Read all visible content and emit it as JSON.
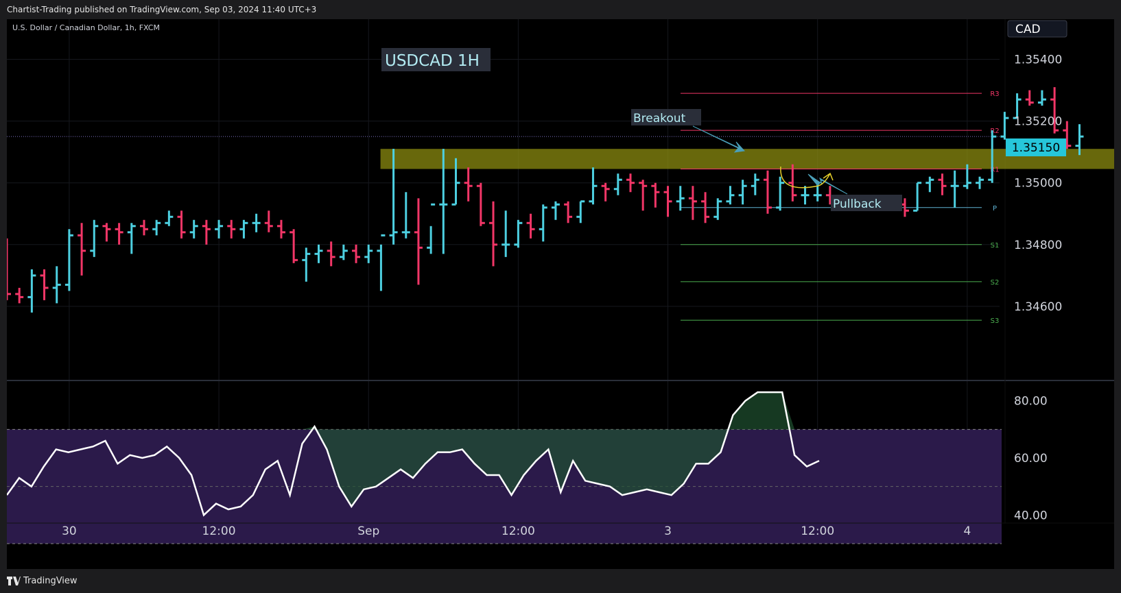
{
  "header": {
    "publisher_text": "Chartist-Trading published on TradingView.com, Sep 03, 2024 11:40 UTC+3"
  },
  "footer": {
    "brand": "TradingView"
  },
  "symbol_info": "U.S. Dollar / Canadian Dollar, 1h, FXCM",
  "currency_label": "CAD",
  "chart_title": "USDCAD 1H",
  "colors": {
    "up": "#4dd0e1",
    "down": "#f23667",
    "up_big": "#7ed7a0",
    "down_big": "#ef5350",
    "zone": "#8b8b10",
    "rsi_band": "#2b1a4a",
    "resistance": "#f23667",
    "support": "#4caf50",
    "pivot": "#5fb3d3"
  },
  "chart_data": {
    "type": "ohlc",
    "price_axis": {
      "ylim": [
        1.3436,
        1.3553
      ],
      "ticks": [
        "1.35400",
        "1.35200",
        "1.35000",
        "1.34800",
        "1.34600"
      ],
      "tick_values": [
        1.354,
        1.352,
        1.35,
        1.348,
        1.346
      ]
    },
    "time_axis": {
      "labels": [
        "30",
        "12:00",
        "Sep",
        "12:00",
        "3",
        "12:00",
        "4"
      ],
      "label_index": [
        5,
        17,
        29,
        41,
        53,
        65,
        77
      ]
    },
    "last_price": "1.35150",
    "last_price_value": 1.3515,
    "bars": [
      [
        1.3482,
        1.3482,
        1.3462,
        1.3464
      ],
      [
        1.3464,
        1.3466,
        1.3461,
        1.3463
      ],
      [
        1.3463,
        1.3472,
        1.3458,
        1.347
      ],
      [
        1.347,
        1.3472,
        1.3462,
        1.3466
      ],
      [
        1.3466,
        1.3473,
        1.3461,
        1.3467
      ],
      [
        1.3467,
        1.3485,
        1.3465,
        1.3483
      ],
      [
        1.3483,
        1.3487,
        1.347,
        1.3478
      ],
      [
        1.3478,
        1.3488,
        1.3476,
        1.3486
      ],
      [
        1.3486,
        1.3487,
        1.3481,
        1.3485
      ],
      [
        1.3485,
        1.3487,
        1.348,
        1.3484
      ],
      [
        1.3484,
        1.3487,
        1.3477,
        1.3486
      ],
      [
        1.3486,
        1.3488,
        1.3483,
        1.3485
      ],
      [
        1.3485,
        1.3488,
        1.3483,
        1.3487
      ],
      [
        1.3487,
        1.3491,
        1.3486,
        1.3489
      ],
      [
        1.3489,
        1.3491,
        1.3482,
        1.3484
      ],
      [
        1.3484,
        1.3488,
        1.3482,
        1.3486
      ],
      [
        1.3486,
        1.3488,
        1.348,
        1.3485
      ],
      [
        1.3485,
        1.3488,
        1.3482,
        1.3486
      ],
      [
        1.3486,
        1.3488,
        1.3482,
        1.3485
      ],
      [
        1.3485,
        1.3488,
        1.3482,
        1.3487
      ],
      [
        1.3487,
        1.349,
        1.3484,
        1.3487
      ],
      [
        1.3487,
        1.3491,
        1.3484,
        1.3486
      ],
      [
        1.3486,
        1.3488,
        1.3482,
        1.3484
      ],
      [
        1.3484,
        1.3485,
        1.3474,
        1.3475
      ],
      [
        1.3475,
        1.3479,
        1.3468,
        1.3477
      ],
      [
        1.3477,
        1.348,
        1.3474,
        1.3478
      ],
      [
        1.3478,
        1.3481,
        1.3473,
        1.3476
      ],
      [
        1.3476,
        1.348,
        1.3475,
        1.3478
      ],
      [
        1.3478,
        1.348,
        1.3474,
        1.3476
      ],
      [
        1.3476,
        1.348,
        1.3474,
        1.3478
      ],
      [
        1.3478,
        1.348,
        1.3465,
        1.3483
      ],
      [
        1.3483,
        1.3511,
        1.348,
        1.3484
      ],
      [
        1.3484,
        1.3497,
        1.3482,
        1.3484
      ],
      [
        1.3484,
        1.3495,
        1.3467,
        1.3479
      ],
      [
        1.3479,
        1.3486,
        1.3477,
        1.3493
      ],
      [
        1.3493,
        1.3511,
        1.3477,
        1.3493
      ],
      [
        1.3493,
        1.3508,
        1.3493,
        1.35
      ],
      [
        1.35,
        1.3505,
        1.3494,
        1.3499
      ],
      [
        1.3499,
        1.35,
        1.3486,
        1.3487
      ],
      [
        1.3487,
        1.3494,
        1.3473,
        1.348
      ],
      [
        1.348,
        1.3491,
        1.3476,
        1.348
      ],
      [
        1.348,
        1.3488,
        1.3479,
        1.3487
      ],
      [
        1.3487,
        1.349,
        1.3482,
        1.3485
      ],
      [
        1.3485,
        1.3493,
        1.3481,
        1.3492
      ],
      [
        1.3492,
        1.3494,
        1.3488,
        1.3493
      ],
      [
        1.3493,
        1.3494,
        1.3487,
        1.3489
      ],
      [
        1.3489,
        1.3494,
        1.3487,
        1.3494
      ],
      [
        1.3494,
        1.3505,
        1.3493,
        1.3499
      ],
      [
        1.3499,
        1.35,
        1.3494,
        1.3498
      ],
      [
        1.3498,
        1.3503,
        1.3496,
        1.3501
      ],
      [
        1.3501,
        1.3503,
        1.3497,
        1.35
      ],
      [
        1.35,
        1.3501,
        1.3491,
        1.3499
      ],
      [
        1.3499,
        1.35,
        1.3492,
        1.3497
      ],
      [
        1.3497,
        1.3499,
        1.3489,
        1.3494
      ],
      [
        1.3494,
        1.3499,
        1.3491,
        1.3495
      ],
      [
        1.3495,
        1.3499,
        1.3488,
        1.3494
      ],
      [
        1.3494,
        1.3497,
        1.3487,
        1.3489
      ],
      [
        1.3489,
        1.3495,
        1.3488,
        1.3494
      ],
      [
        1.3494,
        1.3499,
        1.3493,
        1.3496
      ],
      [
        1.3496,
        1.3501,
        1.3493,
        1.3499
      ],
      [
        1.3499,
        1.3503,
        1.3496,
        1.3501
      ],
      [
        1.3501,
        1.3504,
        1.349,
        1.3492
      ],
      [
        1.3492,
        1.3502,
        1.3491,
        1.35
      ],
      [
        1.35,
        1.3506,
        1.3494,
        1.3496
      ],
      [
        1.3496,
        1.3499,
        1.3493,
        1.3496
      ],
      [
        1.3496,
        1.35,
        1.3494,
        1.3496
      ],
      [
        1.3496,
        1.3499,
        1.3493,
        1.3495
      ],
      [
        1.3495,
        1.3496,
        1.3492,
        1.3493
      ],
      [
        1.3493,
        1.3494,
        1.3491,
        1.3492
      ],
      [
        1.3492,
        1.3494,
        1.3491,
        1.3493
      ],
      [
        1.3493,
        1.3496,
        1.3491,
        1.3494
      ],
      [
        1.3494,
        1.3496,
        1.3492,
        1.3493
      ],
      [
        1.3493,
        1.3495,
        1.3489,
        1.3491
      ],
      [
        1.3491,
        1.35,
        1.3491,
        1.35
      ],
      [
        1.35,
        1.3502,
        1.3497,
        1.3501
      ],
      [
        1.3501,
        1.3503,
        1.3496,
        1.3499
      ],
      [
        1.3499,
        1.3504,
        1.3492,
        1.3499
      ],
      [
        1.3499,
        1.3506,
        1.3498,
        1.35
      ],
      [
        1.35,
        1.3502,
        1.3498,
        1.3501
      ],
      [
        1.3501,
        1.3517,
        1.35,
        1.3515
      ],
      [
        1.3515,
        1.3523,
        1.3514,
        1.3521
      ],
      [
        1.3521,
        1.3529,
        1.3521,
        1.3527
      ],
      [
        1.3527,
        1.353,
        1.3525,
        1.3526
      ],
      [
        1.3526,
        1.353,
        1.3525,
        1.3527
      ],
      [
        1.3527,
        1.3531,
        1.3516,
        1.3517
      ],
      [
        1.3517,
        1.352,
        1.3511,
        1.3512
      ],
      [
        1.3512,
        1.3519,
        1.3509,
        1.3515
      ]
    ],
    "pivots": [
      {
        "label": "R3",
        "value": 1.3529,
        "kind": "resistance"
      },
      {
        "label": "R2",
        "value": 1.3517,
        "kind": "resistance"
      },
      {
        "label": "R1",
        "value": 1.35045,
        "kind": "resistance"
      },
      {
        "label": "P",
        "value": 1.3492,
        "kind": "pivot"
      },
      {
        "label": "S1",
        "value": 1.348,
        "kind": "support"
      },
      {
        "label": "S2",
        "value": 1.3468,
        "kind": "support"
      },
      {
        "label": "S3",
        "value": 1.34555,
        "kind": "support"
      }
    ],
    "zone": {
      "from_index": 31,
      "to_index": 85.5,
      "high": 1.3511,
      "low": 1.35045
    },
    "annotations": [
      {
        "text": "Breakout"
      },
      {
        "text": "Pullback"
      }
    ],
    "rsi": {
      "ylim": [
        30,
        90
      ],
      "ticks": [
        "80.00",
        "60.00",
        "40.00"
      ],
      "tick_values": [
        80,
        60,
        40
      ],
      "band": [
        30,
        70
      ],
      "mid": 50,
      "values": [
        47,
        53,
        50,
        57,
        63,
        62,
        63,
        64,
        66,
        58,
        61,
        60,
        61,
        64,
        60,
        54,
        40,
        44,
        42,
        43,
        47,
        56,
        59,
        47,
        65,
        71,
        63,
        50,
        43,
        49,
        50,
        53,
        56,
        53,
        58,
        62,
        62,
        63,
        58,
        54,
        54,
        47,
        54,
        59,
        63,
        48,
        59,
        52,
        51,
        50,
        47,
        48,
        49,
        48,
        47,
        51,
        58,
        58,
        62,
        75,
        80,
        83,
        83,
        83,
        61,
        57,
        59
      ]
    }
  }
}
